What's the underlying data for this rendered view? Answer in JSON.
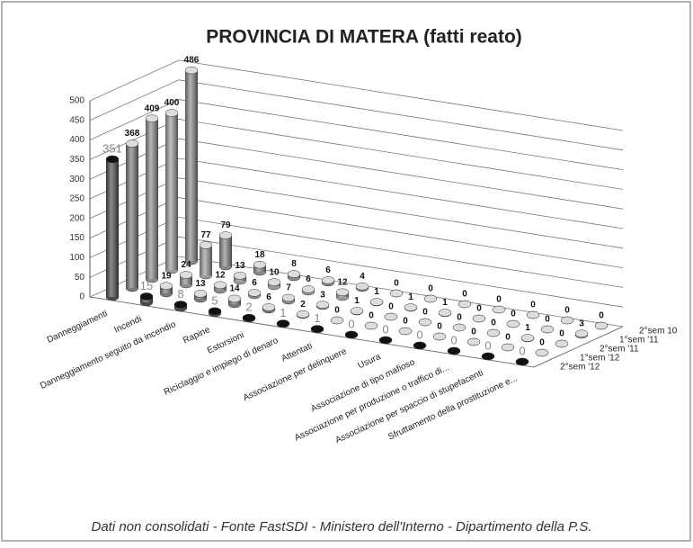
{
  "chart_data": {
    "type": "bar3d",
    "title": "PROVINCIA DI MATERA (fatti reato)",
    "footer": "Dati non consolidati - Fonte FastSDI - Ministero dell'Interno - Dipartimento della P.S.",
    "categories": [
      "Danneggiamenti",
      "Incendi",
      "Danneggiamento seguito da incendio",
      "Rapine",
      "Estorsioni",
      "Riciclaggio e impiego di denaro",
      "Attentati",
      "Associazione per delinquere",
      "Usura",
      "Associazione di tipo mafioso",
      "Associazione per produzione o traffico di...",
      "Associazione per spaccio di stupefacenti",
      "Sfruttamento della prostituzione e..."
    ],
    "series": [
      {
        "name": "2°sem '12",
        "color": "#4a4a4a",
        "values": [
          351,
          15,
          8,
          5,
          2,
          1,
          1,
          0,
          0,
          0,
          0,
          0,
          0
        ]
      },
      {
        "name": "1°sem '12",
        "color": "#7a7a7a",
        "values": [
          368,
          19,
          13,
          14,
          6,
          2,
          0,
          0,
          0,
          0,
          0,
          0,
          0
        ]
      },
      {
        "name": "2°sem '11",
        "color": "#8c8c8c",
        "values": [
          409,
          24,
          12,
          6,
          7,
          3,
          1,
          0,
          0,
          0,
          0,
          1,
          0
        ]
      },
      {
        "name": "1°sem '11",
        "color": "#9a9a9a",
        "values": [
          400,
          77,
          13,
          10,
          6,
          12,
          1,
          1,
          1,
          0,
          0,
          0,
          3
        ]
      },
      {
        "name": "2°sem 10",
        "color": "#888888",
        "values": [
          486,
          79,
          18,
          8,
          6,
          4,
          0,
          0,
          0,
          0,
          0,
          0,
          0
        ]
      }
    ],
    "ylim": [
      0,
      500
    ],
    "yticks": [
      0,
      50,
      100,
      150,
      200,
      250,
      300,
      350,
      400,
      450,
      500
    ],
    "grid": true
  }
}
